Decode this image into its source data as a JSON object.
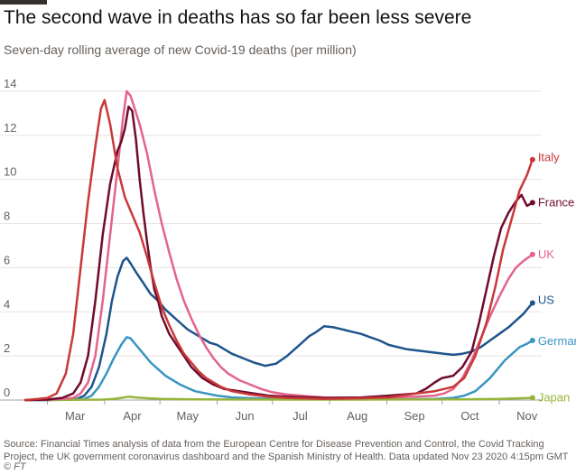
{
  "title": "The second wave in deaths has so far been less severe",
  "subtitle": "Seven-day rolling average of new Covid-19 deaths (per million)",
  "source": "Source: Financial Times analysis of data from the European Centre for Disease Prevention and Control, the Covid Tracking Project, the UK government coronavirus dashboard and the Spanish Ministry of Health. Data updated Nov 23 2020 4:15pm GMT",
  "credit": "© FT",
  "chart_data": {
    "type": "line",
    "x_ticks": [
      "Mar",
      "Apr",
      "May",
      "Jun",
      "Jul",
      "Aug",
      "Sep",
      "Oct",
      "Nov"
    ],
    "x_tick_days": [
      0,
      31,
      61,
      92,
      122,
      153,
      184,
      214,
      245
    ],
    "ylim": [
      0,
      14
    ],
    "y_ticks": [
      0,
      2,
      4,
      6,
      8,
      10,
      12,
      14
    ],
    "grid": true,
    "series": [
      {
        "name": "Italy",
        "color": "#c93838",
        "points": [
          [
            -12,
            0
          ],
          [
            -5,
            0.05
          ],
          [
            0,
            0.1
          ],
          [
            5,
            0.3
          ],
          [
            10,
            1.2
          ],
          [
            14,
            3
          ],
          [
            18,
            6
          ],
          [
            22,
            9
          ],
          [
            26,
            11.5
          ],
          [
            29,
            13.2
          ],
          [
            31,
            13.6
          ],
          [
            34,
            12.5
          ],
          [
            38,
            10.5
          ],
          [
            42,
            9.2
          ],
          [
            46,
            8.4
          ],
          [
            50,
            7.6
          ],
          [
            54,
            6.5
          ],
          [
            58,
            5.3
          ],
          [
            62,
            4.2
          ],
          [
            66,
            3.4
          ],
          [
            70,
            2.7
          ],
          [
            74,
            2.1
          ],
          [
            78,
            1.7
          ],
          [
            82,
            1.3
          ],
          [
            86,
            1
          ],
          [
            90,
            0.8
          ],
          [
            94,
            0.6
          ],
          [
            100,
            0.4
          ],
          [
            110,
            0.25
          ],
          [
            120,
            0.15
          ],
          [
            130,
            0.1
          ],
          [
            150,
            0.05
          ],
          [
            170,
            0.08
          ],
          [
            185,
            0.12
          ],
          [
            200,
            0.3
          ],
          [
            210,
            0.4
          ],
          [
            220,
            0.6
          ],
          [
            226,
            1
          ],
          [
            232,
            2
          ],
          [
            238,
            3.5
          ],
          [
            243,
            5.2
          ],
          [
            247,
            6.8
          ],
          [
            252,
            8.3
          ],
          [
            256,
            9.5
          ],
          [
            260,
            10.2
          ],
          [
            263,
            10.9
          ]
        ]
      },
      {
        "name": "France",
        "color": "#6f0c2e",
        "points": [
          [
            -12,
            0
          ],
          [
            0,
            0.02
          ],
          [
            8,
            0.1
          ],
          [
            14,
            0.3
          ],
          [
            18,
            0.8
          ],
          [
            22,
            2
          ],
          [
            26,
            4.5
          ],
          [
            30,
            7.5
          ],
          [
            34,
            9.8
          ],
          [
            38,
            11.3
          ],
          [
            40,
            11.7
          ],
          [
            42,
            12.3
          ],
          [
            44,
            13.3
          ],
          [
            46,
            13.1
          ],
          [
            48,
            11.8
          ],
          [
            50,
            10
          ],
          [
            52,
            8.5
          ],
          [
            54,
            7.2
          ],
          [
            56,
            6
          ],
          [
            58,
            5
          ],
          [
            60,
            4.5
          ],
          [
            62,
            3.8
          ],
          [
            66,
            3
          ],
          [
            70,
            2.5
          ],
          [
            74,
            2
          ],
          [
            78,
            1.5
          ],
          [
            84,
            1
          ],
          [
            90,
            0.7
          ],
          [
            96,
            0.5
          ],
          [
            104,
            0.4
          ],
          [
            112,
            0.3
          ],
          [
            120,
            0.2
          ],
          [
            130,
            0.15
          ],
          [
            150,
            0.1
          ],
          [
            170,
            0.12
          ],
          [
            185,
            0.2
          ],
          [
            200,
            0.3
          ],
          [
            205,
            0.5
          ],
          [
            210,
            0.8
          ],
          [
            214,
            1
          ],
          [
            220,
            1.1
          ],
          [
            225,
            1.5
          ],
          [
            230,
            2.2
          ],
          [
            234,
            3.5
          ],
          [
            238,
            5
          ],
          [
            242,
            6.5
          ],
          [
            246,
            7.8
          ],
          [
            250,
            8.5
          ],
          [
            254,
            9
          ],
          [
            257,
            9.3
          ],
          [
            260,
            8.8
          ],
          [
            263,
            8.95
          ]
        ]
      },
      {
        "name": "UK",
        "color": "#e3648c",
        "points": [
          [
            -12,
            0
          ],
          [
            0,
            0.02
          ],
          [
            8,
            0.05
          ],
          [
            14,
            0.1
          ],
          [
            18,
            0.3
          ],
          [
            22,
            0.8
          ],
          [
            26,
            2
          ],
          [
            30,
            4.5
          ],
          [
            34,
            7.5
          ],
          [
            38,
            10.5
          ],
          [
            41,
            12.8
          ],
          [
            43,
            14
          ],
          [
            45,
            13.8
          ],
          [
            47,
            13.3
          ],
          [
            50,
            12.5
          ],
          [
            54,
            11.2
          ],
          [
            58,
            9.5
          ],
          [
            62,
            8
          ],
          [
            66,
            6.7
          ],
          [
            70,
            5.5
          ],
          [
            74,
            4.5
          ],
          [
            78,
            3.7
          ],
          [
            82,
            3
          ],
          [
            86,
            2.4
          ],
          [
            90,
            1.9
          ],
          [
            94,
            1.5
          ],
          [
            98,
            1.2
          ],
          [
            104,
            0.9
          ],
          [
            110,
            0.7
          ],
          [
            116,
            0.5
          ],
          [
            122,
            0.35
          ],
          [
            130,
            0.25
          ],
          [
            140,
            0.18
          ],
          [
            150,
            0.12
          ],
          [
            170,
            0.1
          ],
          [
            185,
            0.12
          ],
          [
            200,
            0.15
          ],
          [
            210,
            0.2
          ],
          [
            215,
            0.3
          ],
          [
            220,
            0.5
          ],
          [
            225,
            1
          ],
          [
            230,
            1.8
          ],
          [
            235,
            2.8
          ],
          [
            240,
            3.8
          ],
          [
            245,
            4.7
          ],
          [
            250,
            5.5
          ],
          [
            254,
            6
          ],
          [
            258,
            6.3
          ],
          [
            263,
            6.6
          ]
        ]
      },
      {
        "name": "US",
        "color": "#1e558c",
        "points": [
          [
            -12,
            0
          ],
          [
            0,
            0
          ],
          [
            10,
            0.02
          ],
          [
            16,
            0.05
          ],
          [
            20,
            0.2
          ],
          [
            24,
            0.6
          ],
          [
            28,
            1.5
          ],
          [
            32,
            3
          ],
          [
            35,
            4.5
          ],
          [
            38,
            5.6
          ],
          [
            41,
            6.3
          ],
          [
            43,
            6.45
          ],
          [
            45,
            6.2
          ],
          [
            48,
            5.8
          ],
          [
            52,
            5.3
          ],
          [
            56,
            4.8
          ],
          [
            60,
            4.5
          ],
          [
            64,
            4.1
          ],
          [
            68,
            3.8
          ],
          [
            72,
            3.5
          ],
          [
            76,
            3.2
          ],
          [
            80,
            3
          ],
          [
            84,
            2.8
          ],
          [
            88,
            2.6
          ],
          [
            92,
            2.5
          ],
          [
            96,
            2.3
          ],
          [
            100,
            2.1
          ],
          [
            106,
            1.9
          ],
          [
            112,
            1.7
          ],
          [
            118,
            1.55
          ],
          [
            124,
            1.65
          ],
          [
            130,
            2
          ],
          [
            134,
            2.3
          ],
          [
            138,
            2.6
          ],
          [
            142,
            2.9
          ],
          [
            146,
            3.1
          ],
          [
            150,
            3.35
          ],
          [
            155,
            3.3
          ],
          [
            160,
            3.2
          ],
          [
            165,
            3.1
          ],
          [
            170,
            3
          ],
          [
            175,
            2.85
          ],
          [
            180,
            2.7
          ],
          [
            185,
            2.5
          ],
          [
            190,
            2.4
          ],
          [
            195,
            2.3
          ],
          [
            200,
            2.25
          ],
          [
            205,
            2.2
          ],
          [
            210,
            2.15
          ],
          [
            215,
            2.1
          ],
          [
            220,
            2.05
          ],
          [
            225,
            2.1
          ],
          [
            230,
            2.2
          ],
          [
            235,
            2.4
          ],
          [
            240,
            2.7
          ],
          [
            245,
            3
          ],
          [
            250,
            3.3
          ],
          [
            254,
            3.6
          ],
          [
            258,
            3.9
          ],
          [
            263,
            4.4
          ]
        ]
      },
      {
        "name": "Germany",
        "color": "#3995c1",
        "points": [
          [
            -12,
            0
          ],
          [
            0,
            0
          ],
          [
            16,
            0.02
          ],
          [
            20,
            0.05
          ],
          [
            24,
            0.2
          ],
          [
            28,
            0.6
          ],
          [
            32,
            1.2
          ],
          [
            36,
            1.9
          ],
          [
            40,
            2.5
          ],
          [
            43,
            2.85
          ],
          [
            45,
            2.8
          ],
          [
            48,
            2.5
          ],
          [
            52,
            2.1
          ],
          [
            56,
            1.7
          ],
          [
            60,
            1.4
          ],
          [
            64,
            1.1
          ],
          [
            68,
            0.9
          ],
          [
            72,
            0.7
          ],
          [
            76,
            0.55
          ],
          [
            80,
            0.4
          ],
          [
            86,
            0.3
          ],
          [
            92,
            0.2
          ],
          [
            100,
            0.12
          ],
          [
            110,
            0.08
          ],
          [
            125,
            0.05
          ],
          [
            150,
            0.03
          ],
          [
            190,
            0.03
          ],
          [
            210,
            0.05
          ],
          [
            220,
            0.1
          ],
          [
            226,
            0.2
          ],
          [
            232,
            0.4
          ],
          [
            236,
            0.7
          ],
          [
            240,
            1
          ],
          [
            244,
            1.4
          ],
          [
            248,
            1.8
          ],
          [
            252,
            2.1
          ],
          [
            256,
            2.4
          ],
          [
            260,
            2.55
          ],
          [
            263,
            2.7
          ]
        ]
      },
      {
        "name": "Japan",
        "color": "#96b43a",
        "points": [
          [
            -12,
            0
          ],
          [
            30,
            0.02
          ],
          [
            36,
            0.05
          ],
          [
            40,
            0.1
          ],
          [
            44,
            0.15
          ],
          [
            48,
            0.12
          ],
          [
            54,
            0.08
          ],
          [
            62,
            0.05
          ],
          [
            80,
            0.03
          ],
          [
            150,
            0.02
          ],
          [
            220,
            0.03
          ],
          [
            245,
            0.05
          ],
          [
            263,
            0.1
          ]
        ]
      }
    ]
  }
}
